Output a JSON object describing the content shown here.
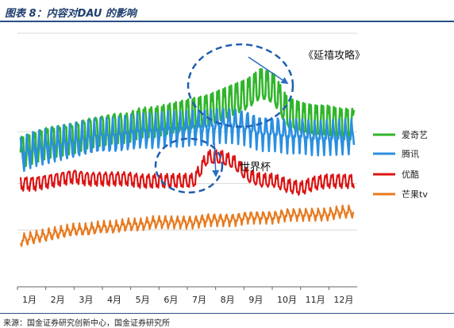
{
  "title": "图表 8：内容对DAU 的影响",
  "source": "来源：国金证券研究创新中心，国金证券研究所",
  "annotations": [
    {
      "id": "yanxi",
      "text": "《延禧攻略》"
    },
    {
      "id": "worldcup",
      "text": "世界杯"
    }
  ],
  "chart_data": {
    "type": "line",
    "title": "图表 8：内容对DAU 的影响",
    "xlabel": "",
    "ylabel": "",
    "x_ticks": [
      "1月",
      "2月",
      "3月",
      "4月",
      "5月",
      "6月",
      "7月",
      "8月",
      "9月",
      "10月",
      "11月",
      "12月"
    ],
    "y_visible": false,
    "ylim": [
      0,
      100
    ],
    "grid": "horizontal",
    "legend_position": "right",
    "series": [
      {
        "name": "爱奇艺",
        "color": "#2fb52a",
        "values": [
          52,
          54,
          56,
          57,
          58,
          60,
          61,
          62,
          62,
          64,
          64,
          65,
          66,
          67,
          68,
          70,
          72,
          74,
          78,
          76,
          67,
          65,
          64,
          64,
          63,
          63
        ]
      },
      {
        "name": "腾讯",
        "color": "#2b8fe0",
        "values": [
          51,
          53,
          54,
          55,
          56,
          57,
          58,
          58,
          59,
          60,
          60,
          61,
          61,
          62,
          62,
          63,
          63,
          62,
          60,
          60,
          59,
          59,
          58,
          58,
          58,
          58
        ]
      },
      {
        "name": "优酷",
        "color": "#dc1414",
        "values": [
          40,
          40,
          41,
          42,
          43,
          42,
          42,
          42,
          42,
          41,
          41,
          41,
          41,
          41,
          50,
          50,
          48,
          43,
          41,
          41,
          39,
          38,
          40,
          41,
          41,
          41
        ]
      },
      {
        "name": "芒果tv",
        "color": "#e87a1e",
        "values": [
          18,
          19,
          20,
          21,
          22,
          22,
          23,
          23,
          24,
          24,
          25,
          25,
          25,
          25,
          26,
          26,
          26,
          27,
          27,
          27,
          28,
          28,
          28,
          28,
          29,
          29
        ]
      }
    ]
  }
}
